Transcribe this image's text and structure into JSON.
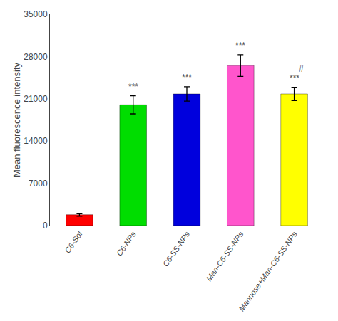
{
  "chart_data": {
    "type": "bar",
    "categories": [
      "C6-Sol",
      "C6-NPs",
      "C6-SS-NPs",
      "Man-C6-SS-NPs",
      "Mannose+Man-C6-SS-NPs"
    ],
    "values": [
      1800,
      20000,
      21800,
      26500,
      21800
    ],
    "errors": [
      250,
      1500,
      1200,
      1800,
      1100
    ],
    "colors": [
      "#ff0000",
      "#00dd00",
      "#0000dd",
      "#ff55cc",
      "#ffff00"
    ],
    "ylabel": "Mean fluorescence intensity",
    "ylim": [
      0,
      35000
    ],
    "yticks": [
      0,
      7000,
      14000,
      21000,
      28000,
      35000
    ],
    "grid": false,
    "annotations": [
      {
        "category": "C6-NPs",
        "text": "***"
      },
      {
        "category": "C6-SS-NPs",
        "text": "***"
      },
      {
        "category": "Man-C6-SS-NPs",
        "text": "***"
      },
      {
        "category": "Mannose+Man-C6-SS-NPs",
        "text": "***"
      },
      {
        "category": "Mannose+Man-C6-SS-NPs",
        "text": "#"
      }
    ]
  }
}
